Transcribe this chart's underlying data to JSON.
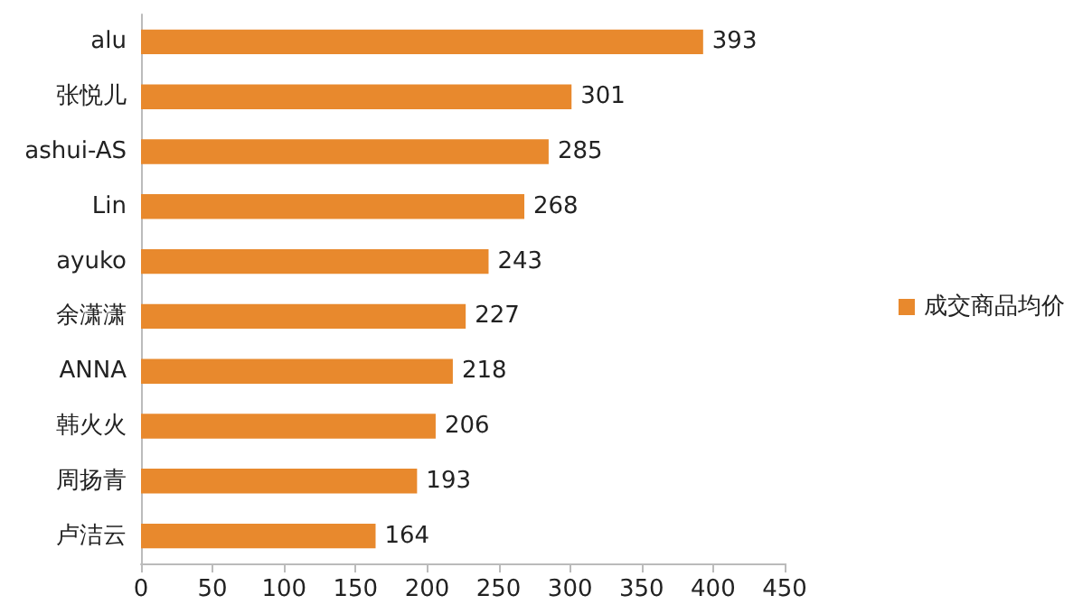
{
  "chart_data": {
    "type": "bar",
    "orientation": "horizontal",
    "categories": [
      "alu",
      "张悦儿",
      "ashui-AS",
      "Lin",
      "ayuko",
      "余潇潇",
      "ANNA",
      "韩火火",
      "周扬青",
      "卢洁云"
    ],
    "series": [
      {
        "name": "成交商品均价",
        "color": "#e8892d",
        "values": [
          393,
          301,
          285,
          268,
          243,
          227,
          218,
          206,
          193,
          164
        ]
      }
    ],
    "xlim": [
      0,
      450
    ],
    "xticks": [
      0,
      50,
      100,
      150,
      200,
      250,
      300,
      350,
      400,
      450
    ],
    "data_labels": true,
    "legend": "right",
    "grid": false
  }
}
